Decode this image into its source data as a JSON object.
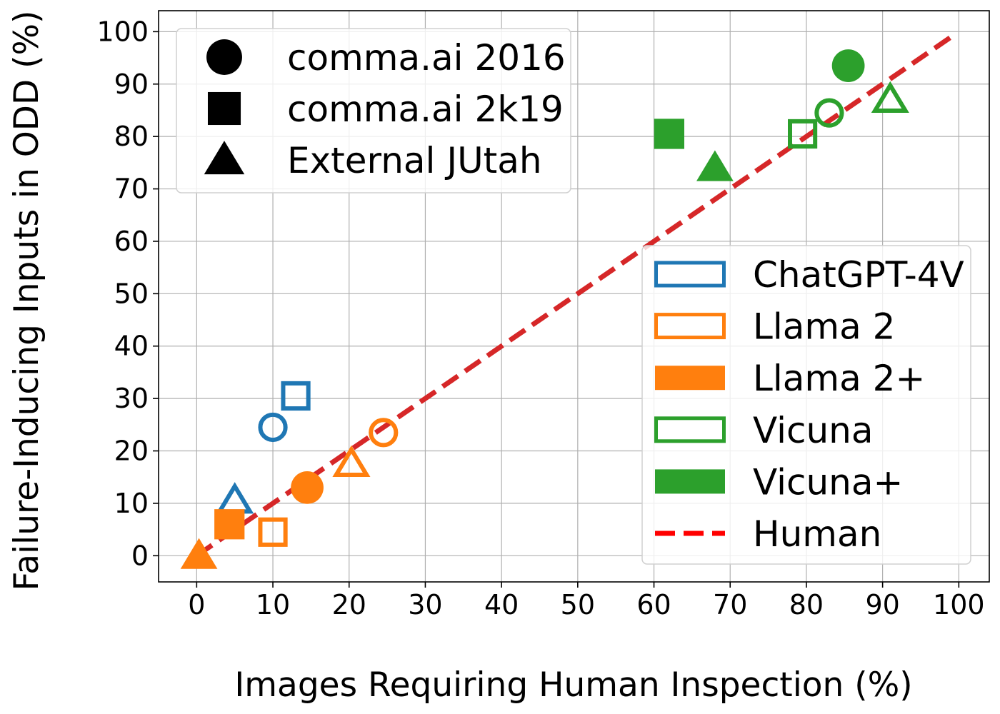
{
  "chart_data": {
    "type": "scatter",
    "xlabel": "Images Requiring Human Inspection (%)",
    "ylabel": "Failure-Inducing Inputs in ODD (%)",
    "xlim": [
      -5,
      104
    ],
    "ylim": [
      -5,
      104
    ],
    "xticks": [
      "0",
      "10",
      "20",
      "30",
      "40",
      "50",
      "60",
      "70",
      "80",
      "90",
      "100"
    ],
    "yticks": [
      "0",
      "10",
      "20",
      "30",
      "40",
      "50",
      "60",
      "70",
      "80",
      "90",
      "100"
    ],
    "grid": true,
    "shape_legend": {
      "placement": "top-left",
      "entries": [
        {
          "marker": "circle",
          "label": "comma.ai 2016"
        },
        {
          "marker": "square",
          "label": "comma.ai 2k19"
        },
        {
          "marker": "triangle",
          "label": "External JUtah"
        }
      ]
    },
    "model_legend": {
      "placement": "center-right",
      "entries": [
        {
          "label": "ChatGPT-4V",
          "color": "#1f77b4",
          "filled": false,
          "style": "box"
        },
        {
          "label": "Llama 2",
          "color": "#ff7f0e",
          "filled": false,
          "style": "box"
        },
        {
          "label": "Llama 2+",
          "color": "#ff7f0e",
          "filled": true,
          "style": "box"
        },
        {
          "label": "Vicuna",
          "color": "#2ca02c",
          "filled": false,
          "style": "box"
        },
        {
          "label": "Vicuna+",
          "color": "#2ca02c",
          "filled": true,
          "style": "box"
        },
        {
          "label": "Human",
          "color": "#d62728",
          "filled": false,
          "style": "dashed-line"
        }
      ]
    },
    "series": [
      {
        "name": "ChatGPT-4V",
        "color": "#1f77b4",
        "filled": false,
        "points": [
          {
            "marker": "circle",
            "x": 10,
            "y": 24.5
          },
          {
            "marker": "square",
            "x": 13,
            "y": 30.5
          },
          {
            "marker": "triangle",
            "x": 5,
            "y": 10.5
          }
        ]
      },
      {
        "name": "Llama 2",
        "color": "#ff7f0e",
        "filled": false,
        "points": [
          {
            "marker": "circle",
            "x": 24.5,
            "y": 23.5
          },
          {
            "marker": "square",
            "x": 10,
            "y": 4.5
          },
          {
            "marker": "triangle",
            "x": 20.3,
            "y": 17.5
          }
        ]
      },
      {
        "name": "Llama 2+",
        "color": "#ff7f0e",
        "filled": true,
        "points": [
          {
            "marker": "circle",
            "x": 14.5,
            "y": 13
          },
          {
            "marker": "square",
            "x": 4.3,
            "y": 6
          },
          {
            "marker": "triangle",
            "x": 0.3,
            "y": 0
          }
        ]
      },
      {
        "name": "Vicuna",
        "color": "#2ca02c",
        "filled": false,
        "points": [
          {
            "marker": "circle",
            "x": 83,
            "y": 84.5
          },
          {
            "marker": "square",
            "x": 79.5,
            "y": 80.5
          },
          {
            "marker": "triangle",
            "x": 91,
            "y": 87
          }
        ]
      },
      {
        "name": "Vicuna+",
        "color": "#2ca02c",
        "filled": true,
        "points": [
          {
            "marker": "circle",
            "x": 85.5,
            "y": 93.5
          },
          {
            "marker": "square",
            "x": 62,
            "y": 80.5
          },
          {
            "marker": "triangle",
            "x": 68,
            "y": 74
          }
        ]
      },
      {
        "name": "Human",
        "color": "#d62728",
        "type": "line",
        "style": "dashed",
        "x": [
          0,
          99
        ],
        "y": [
          0,
          99
        ]
      }
    ]
  }
}
